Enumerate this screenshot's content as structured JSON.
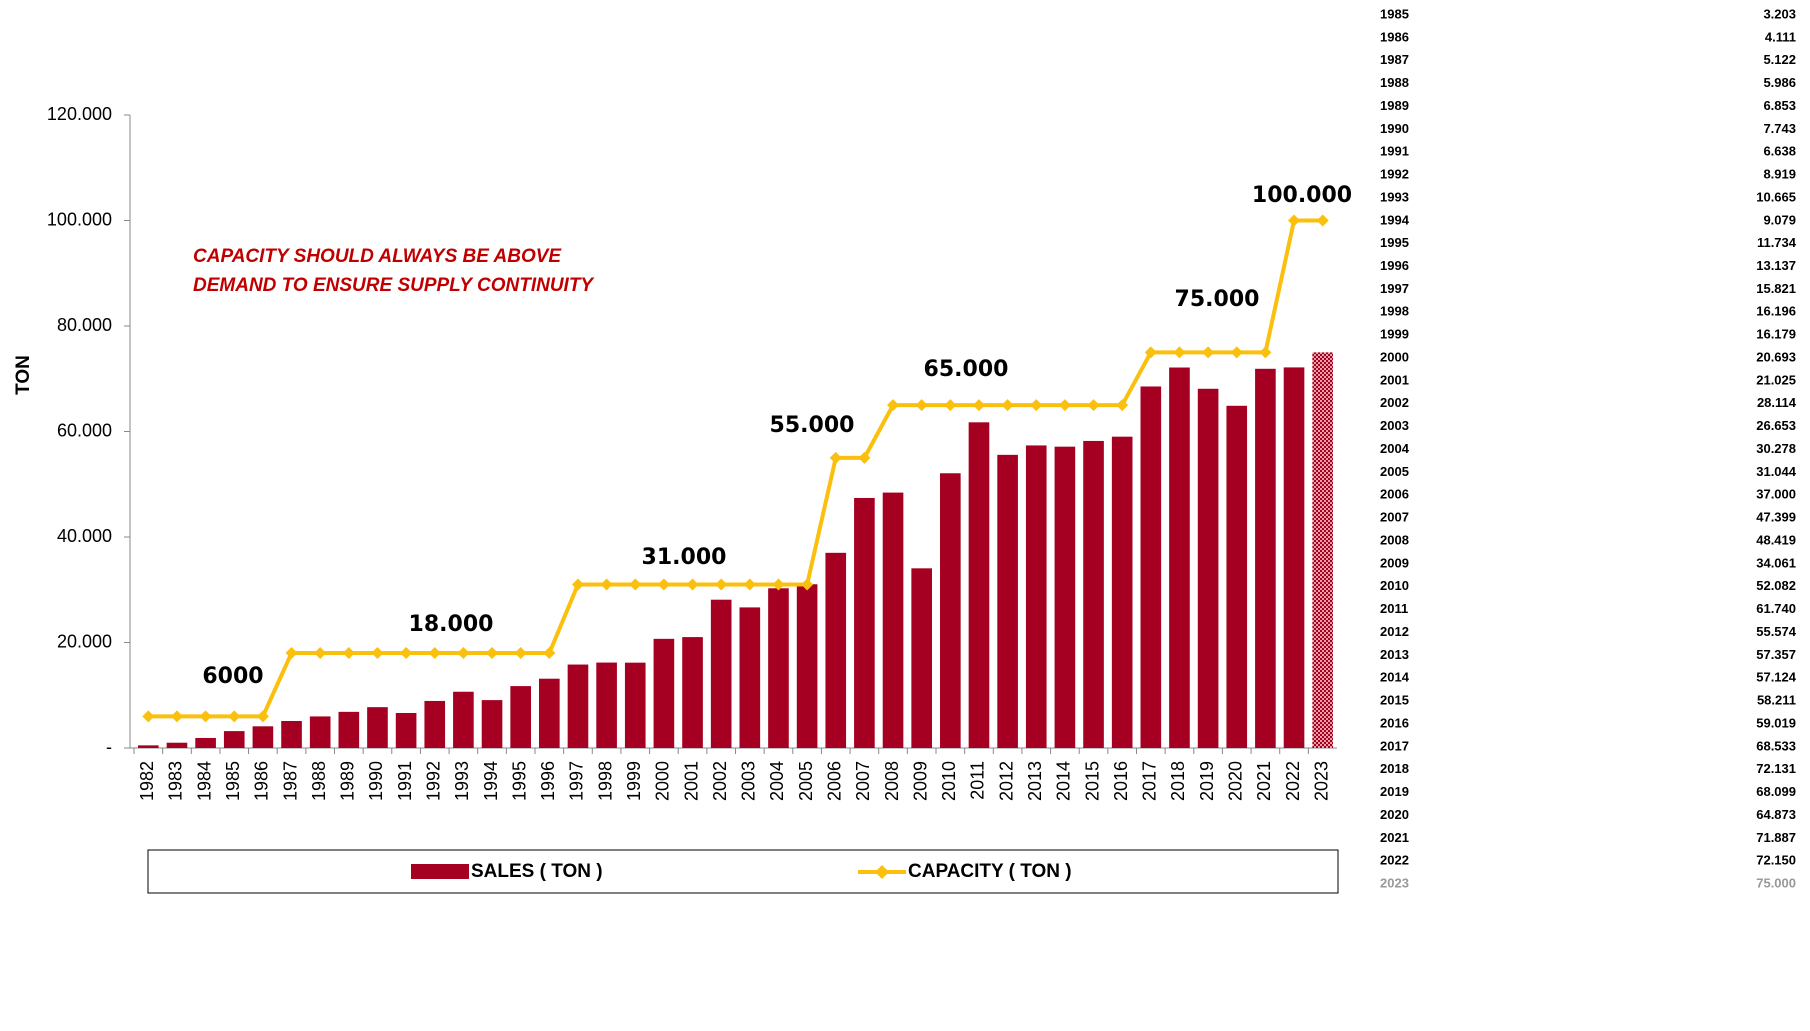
{
  "chart_data": {
    "type": "bar_line",
    "y_label": "TON",
    "annotation_lines": [
      "CAPACITY SHOULD ALWAYS BE ABOVE",
      "DEMAND TO ENSURE SUPPLY CONTINUITY"
    ],
    "level_labels": [
      "6000",
      "18.000",
      "31.000",
      "55.000",
      "65.000",
      "75.000",
      "100.000"
    ],
    "categories": [
      "1982",
      "1983",
      "1984",
      "1985",
      "1986",
      "1987",
      "1988",
      "1989",
      "1990",
      "1991",
      "1992",
      "1993",
      "1994",
      "1995",
      "1996",
      "1997",
      "1998",
      "1999",
      "2000",
      "2001",
      "2002",
      "2003",
      "2004",
      "2005",
      "2006",
      "2007",
      "2008",
      "2009",
      "2010",
      "2011",
      "2012",
      "2013",
      "2014",
      "2015",
      "2016",
      "2017",
      "2018",
      "2019",
      "2020",
      "2021",
      "2022",
      "2023"
    ],
    "series": [
      {
        "name": "SALES ( TON )",
        "type": "bar",
        "color": "#a50021",
        "values": [
          500,
          1000,
          1900,
          3203,
          4111,
          5122,
          5986,
          6853,
          7743,
          6638,
          8919,
          10665,
          9079,
          11734,
          13137,
          15821,
          16196,
          16179,
          20693,
          21025,
          28114,
          26653,
          30278,
          31044,
          37000,
          47399,
          48419,
          34061,
          52082,
          61740,
          55574,
          57357,
          57124,
          58211,
          59019,
          68533,
          72131,
          68099,
          64873,
          71887,
          72150,
          75000
        ]
      },
      {
        "name": "CAPACITY ( TON )",
        "type": "line",
        "color": "#fbbf0e",
        "values": [
          6000,
          6000,
          6000,
          6000,
          6000,
          18000,
          18000,
          18000,
          18000,
          18000,
          18000,
          18000,
          18000,
          18000,
          18000,
          31000,
          31000,
          31000,
          31000,
          31000,
          31000,
          31000,
          31000,
          31000,
          55000,
          55000,
          65000,
          65000,
          65000,
          65000,
          65000,
          65000,
          65000,
          65000,
          65000,
          75000,
          75000,
          75000,
          75000,
          75000,
          100000,
          100000
        ]
      }
    ],
    "ylim": [
      0,
      120000
    ],
    "yticks": [
      {
        "value": 0,
        "label": "-"
      },
      {
        "value": 20000,
        "label": "20.000"
      },
      {
        "value": 40000,
        "label": "40.000"
      },
      {
        "value": 60000,
        "label": "60.000"
      },
      {
        "value": 80000,
        "label": "80.000"
      },
      {
        "value": 100000,
        "label": "100.000"
      },
      {
        "value": 120000,
        "label": "120.000"
      }
    ]
  },
  "table": {
    "rows": [
      [
        "1985",
        "3.203"
      ],
      [
        "1986",
        "4.111"
      ],
      [
        "1987",
        "5.122"
      ],
      [
        "1988",
        "5.986"
      ],
      [
        "1989",
        "6.853"
      ],
      [
        "1990",
        "7.743"
      ],
      [
        "1991",
        "6.638"
      ],
      [
        "1992",
        "8.919"
      ],
      [
        "1993",
        "10.665"
      ],
      [
        "1994",
        "9.079"
      ],
      [
        "1995",
        "11.734"
      ],
      [
        "1996",
        "13.137"
      ],
      [
        "1997",
        "15.821"
      ],
      [
        "1998",
        "16.196"
      ],
      [
        "1999",
        "16.179"
      ],
      [
        "2000",
        "20.693"
      ],
      [
        "2001",
        "21.025"
      ],
      [
        "2002",
        "28.114"
      ],
      [
        "2003",
        "26.653"
      ],
      [
        "2004",
        "30.278"
      ],
      [
        "2005",
        "31.044"
      ],
      [
        "2006",
        "37.000"
      ],
      [
        "2007",
        "47.399"
      ],
      [
        "2008",
        "48.419"
      ],
      [
        "2009",
        "34.061"
      ],
      [
        "2010",
        "52.082"
      ],
      [
        "2011",
        "61.740"
      ],
      [
        "2012",
        "55.574"
      ],
      [
        "2013",
        "57.357"
      ],
      [
        "2014",
        "57.124"
      ],
      [
        "2015",
        "58.211"
      ],
      [
        "2016",
        "59.019"
      ],
      [
        "2017",
        "68.533"
      ],
      [
        "2018",
        "72.131"
      ],
      [
        "2019",
        "68.099"
      ],
      [
        "2020",
        "64.873"
      ],
      [
        "2021",
        "71.887"
      ],
      [
        "2022",
        "72.150"
      ],
      [
        "2023",
        "75.000"
      ]
    ]
  }
}
